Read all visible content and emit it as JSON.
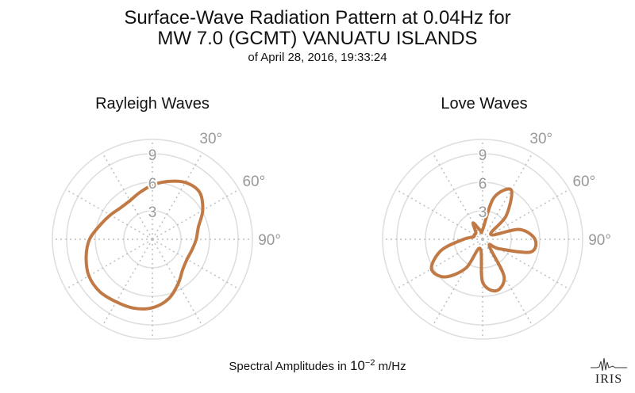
{
  "title": {
    "line1": "Surface-Wave Radiation Pattern at 0.04Hz for",
    "line2": "MW 7.0 (GCMT) VANUATU ISLANDS",
    "line3": "of April 28, 2016, 19:33:24"
  },
  "footer": {
    "prefix": "Spectral Amplitudes in ",
    "base": "10",
    "exponent": "−2",
    "suffix": " m/Hz"
  },
  "logo": {
    "text": "IRIS"
  },
  "colors": {
    "pattern": "#C17A45",
    "grid": "#DDDDDD",
    "grid_dotted": "#BDBDBD",
    "labels": "#999999"
  },
  "chart_data": [
    {
      "type": "polar-line",
      "title": "Rayleigh Waves",
      "r_ticks": [
        "3",
        "6",
        "9"
      ],
      "r_max": 10.5,
      "angle_labels": [
        "30°",
        "60°",
        "90°"
      ],
      "angle_unit": "degrees clockwise from north",
      "grid": true,
      "series": [
        {
          "theta": [
            0,
            15,
            30,
            45,
            60,
            75,
            90,
            105,
            120,
            135,
            150,
            165,
            180,
            195,
            210,
            225,
            240,
            255,
            270,
            285,
            300,
            315,
            330,
            345
          ],
          "r": [
            5.7,
            6.3,
            6.9,
            7.0,
            6.1,
            5.0,
            4.6,
            4.3,
            4.2,
            4.5,
            5.4,
            6.5,
            7.2,
            7.5,
            7.6,
            7.8,
            7.7,
            7.2,
            6.6,
            5.7,
            5.1,
            4.7,
            4.7,
            5.1
          ]
        }
      ]
    },
    {
      "type": "polar-line",
      "title": "Love Waves",
      "r_ticks": [
        "3",
        "6",
        "9"
      ],
      "r_max": 10.5,
      "angle_labels": [
        "30°",
        "60°",
        "90°"
      ],
      "angle_unit": "degrees clockwise from north",
      "grid": true,
      "series": [
        {
          "theta": [
            0,
            15,
            30,
            45,
            60,
            75,
            90,
            105,
            120,
            135,
            150,
            165,
            180,
            195,
            210,
            225,
            240,
            255,
            270,
            285,
            300,
            315,
            330,
            345
          ],
          "r": [
            1.0,
            4.5,
            6.0,
            3.5,
            1.0,
            4.0,
            5.5,
            5.2,
            2.0,
            1.0,
            4.5,
            5.6,
            4.5,
            1.0,
            3.5,
            5.6,
            6.2,
            4.5,
            2.0,
            1.0,
            1.0,
            1.0,
            2.0,
            1.0
          ]
        }
      ]
    }
  ]
}
